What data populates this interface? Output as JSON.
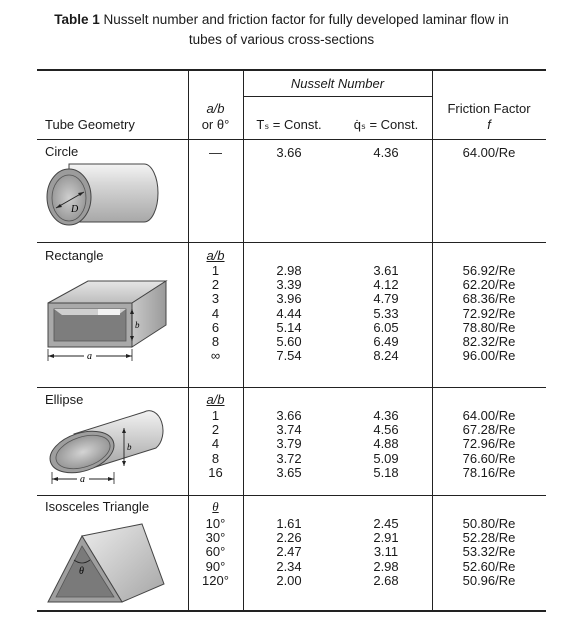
{
  "caption": {
    "label": "Table 1",
    "text": " Nusselt number and friction factor for fully developed laminar flow in",
    "line2": "tubes of various cross-sections"
  },
  "header": {
    "nusselt_group": "Nusselt Number",
    "geometry": "Tube Geometry",
    "ratio_line1": "a/b",
    "ratio_line2": "or θ°",
    "ts_const": "Tₛ = Const.",
    "qs_const": "q̇ₛ = Const.",
    "friction_line1": "Friction Factor",
    "friction_line2": "f"
  },
  "rows": {
    "circle": {
      "name": "Circle",
      "ratio": "—",
      "ts": "3.66",
      "qs": "4.36",
      "f": "64.00/Re",
      "diagram_label": "D"
    },
    "rectangle": {
      "name": "Rectangle",
      "ratio_header": "a/b",
      "ratios": [
        "1",
        "2",
        "3",
        "4",
        "6",
        "8",
        "∞"
      ],
      "ts": [
        "2.98",
        "3.39",
        "3.96",
        "4.44",
        "5.14",
        "5.60",
        "7.54"
      ],
      "qs": [
        "3.61",
        "4.12",
        "4.79",
        "5.33",
        "6.05",
        "6.49",
        "8.24"
      ],
      "f": [
        "56.92/Re",
        "62.20/Re",
        "68.36/Re",
        "72.92/Re",
        "78.80/Re",
        "82.32/Re",
        "96.00/Re"
      ],
      "diagram_a": "a",
      "diagram_b": "b"
    },
    "ellipse": {
      "name": "Ellipse",
      "ratio_header": "a/b",
      "ratios": [
        "1",
        "2",
        "4",
        "8",
        "16"
      ],
      "ts": [
        "3.66",
        "3.74",
        "3.79",
        "3.72",
        "3.65"
      ],
      "qs": [
        "4.36",
        "4.56",
        "4.88",
        "5.09",
        "5.18"
      ],
      "f": [
        "64.00/Re",
        "67.28/Re",
        "72.96/Re",
        "76.60/Re",
        "78.16/Re"
      ],
      "diagram_a": "a",
      "diagram_b": "b"
    },
    "triangle": {
      "name": "Isosceles Triangle",
      "ratio_header": "θ",
      "ratios": [
        "10°",
        "30°",
        "60°",
        "90°",
        "120°"
      ],
      "ts": [
        "1.61",
        "2.26",
        "2.47",
        "2.34",
        "2.00"
      ],
      "qs": [
        "2.45",
        "2.91",
        "3.11",
        "2.98",
        "2.68"
      ],
      "f": [
        "50.80/Re",
        "52.28/Re",
        "53.32/Re",
        "52.60/Re",
        "50.96/Re"
      ],
      "diagram_label": "θ"
    }
  }
}
